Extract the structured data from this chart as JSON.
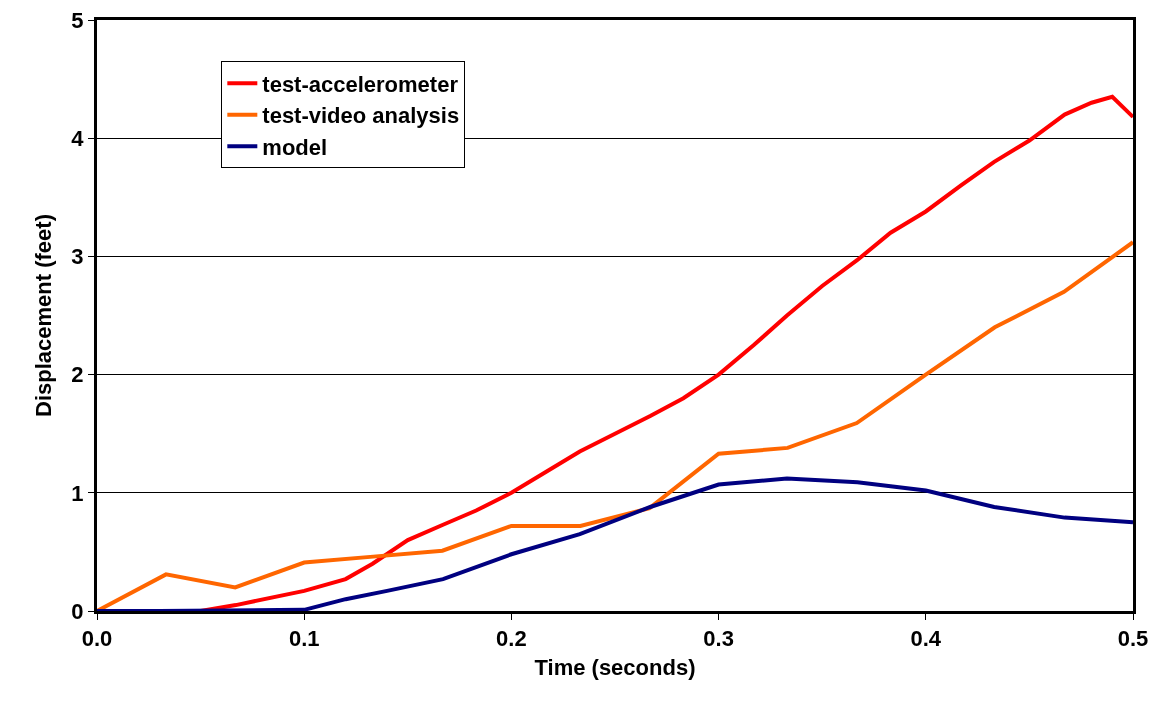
{
  "chart_data": {
    "type": "line",
    "xlabel": "Time (seconds)",
    "ylabel": "Displacement (feet)",
    "xlim": [
      0,
      0.5
    ],
    "xticks": [
      {
        "value": 0,
        "label": "0.0"
      },
      0.1,
      0.2,
      0.3,
      0.4,
      0.5
    ],
    "ylim": [
      0,
      5
    ],
    "yticks": [
      0,
      1,
      2,
      3,
      4,
      5
    ],
    "grid": "y",
    "legend": "top left",
    "marker": "none",
    "line_style": "solid",
    "series": [
      {
        "name": "test-accelerometer",
        "color": "#ff0000",
        "x": [
          0,
          0.02,
          0.05,
          0.067,
          0.1,
          0.12,
          0.133,
          0.15,
          0.167,
          0.183,
          0.2,
          0.217,
          0.233,
          0.25,
          0.267,
          0.283,
          0.3,
          0.317,
          0.333,
          0.35,
          0.367,
          0.383,
          0.4,
          0.417,
          0.433,
          0.45,
          0.467,
          0.48,
          0.49,
          0.5
        ],
        "values": [
          0,
          0,
          0,
          0.05,
          0.17,
          0.27,
          0.4,
          0.6,
          0.73,
          0.85,
          1.0,
          1.18,
          1.35,
          1.5,
          1.65,
          1.8,
          2.0,
          2.25,
          2.5,
          2.75,
          2.97,
          3.2,
          3.38,
          3.6,
          3.8,
          3.98,
          4.2,
          4.3,
          4.35,
          4.18
        ]
      },
      {
        "name": "test-video analysis",
        "color": "#ff6600",
        "x": [
          0,
          0.0333,
          0.0667,
          0.1,
          0.1333,
          0.1667,
          0.2,
          0.2333,
          0.2667,
          0.3,
          0.3333,
          0.3667,
          0.4,
          0.4333,
          0.4667,
          0.5
        ],
        "values": [
          0,
          0.31,
          0.2,
          0.41,
          0.46,
          0.51,
          0.72,
          0.72,
          0.87,
          1.33,
          1.38,
          1.59,
          2.0,
          2.4,
          2.7,
          3.12
        ]
      },
      {
        "name": "model",
        "color": "#000080",
        "x": [
          0,
          0.03,
          0.1,
          0.12,
          0.14,
          0.167,
          0.2,
          0.233,
          0.267,
          0.3,
          0.333,
          0.367,
          0.4,
          0.433,
          0.467,
          0.5
        ],
        "values": [
          0,
          0,
          0.01,
          0.1,
          0.17,
          0.27,
          0.48,
          0.65,
          0.88,
          1.07,
          1.12,
          1.09,
          1.02,
          0.88,
          0.79,
          0.75
        ]
      }
    ]
  }
}
